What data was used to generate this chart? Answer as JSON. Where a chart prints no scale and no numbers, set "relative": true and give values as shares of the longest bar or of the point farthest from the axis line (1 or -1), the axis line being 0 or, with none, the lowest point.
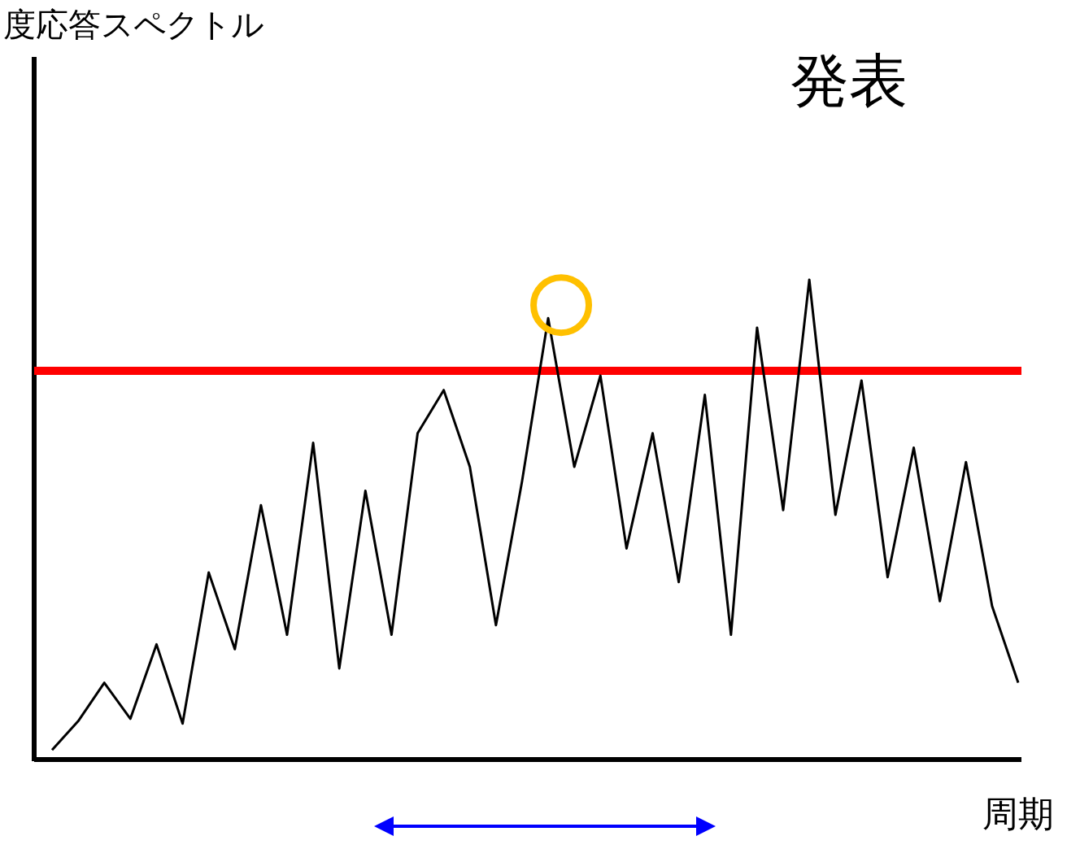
{
  "chart_data": {
    "type": "line",
    "title": "発表",
    "annotations": [
      "度応答スペクトル"
    ],
    "xlabel": "周期",
    "relative": true,
    "categories": [
      null,
      null,
      null,
      null,
      null,
      null,
      null,
      null,
      null,
      null,
      null,
      null,
      null,
      null,
      null,
      null,
      null,
      null,
      null,
      null,
      null,
      null,
      null,
      null,
      null,
      null,
      null,
      null,
      null,
      null,
      null,
      null,
      null,
      null,
      null,
      null,
      null,
      null
    ],
    "series": [
      {
        "color": "#000000",
        "values": [
          0.02,
          0.08,
          0.16,
          0.085,
          0.24,
          0.075,
          0.39,
          0.23,
          0.53,
          0.26,
          0.66,
          0.19,
          0.56,
          0.26,
          0.68,
          0.77,
          0.61,
          0.28,
          0.58,
          0.92,
          0.61,
          0.8,
          0.44,
          0.68,
          0.37,
          0.76,
          0.26,
          0.9,
          0.52,
          1,
          0.51,
          0.79,
          0.38,
          0.65,
          0.33,
          0.62,
          0.32,
          0.16
        ]
      }
    ],
    "ref_lines": [
      {
        "axis": "y",
        "value": 0.81,
        "color": "#ff0000"
      }
    ]
  }
}
